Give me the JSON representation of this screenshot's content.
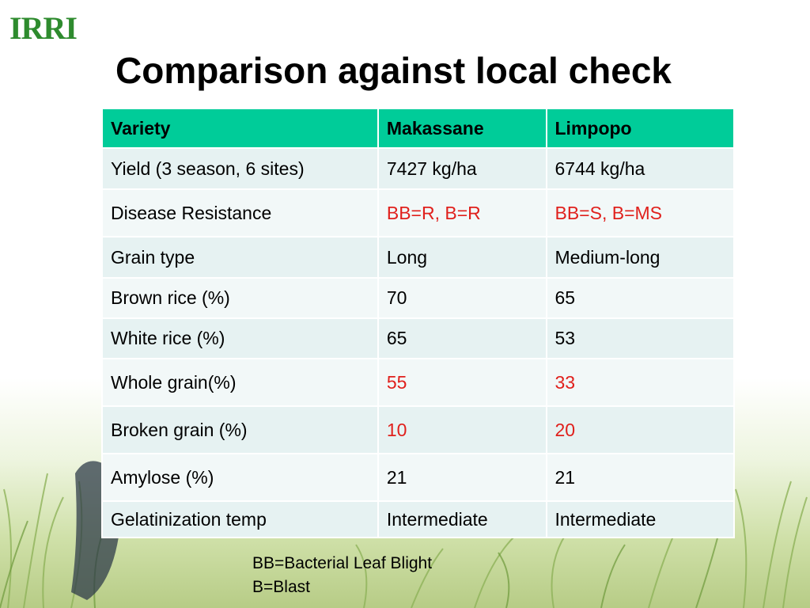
{
  "logo": "IRRI",
  "title": "Comparison against local check",
  "table": {
    "headers": [
      "Variety",
      "Makassane",
      "Limpopo"
    ],
    "rows": [
      [
        "Yield (3 season, 6 sites)",
        "7427 kg/ha",
        "6744 kg/ha"
      ],
      [
        "Disease Resistance",
        "BB=R, B=R",
        "BB=S, B=MS"
      ],
      [
        "Grain type",
        "Long",
        "Medium-long"
      ],
      [
        "Brown rice (%)",
        "70",
        "65"
      ],
      [
        "White rice (%)",
        "65",
        "53"
      ],
      [
        "Whole grain(%)",
        "55",
        "33"
      ],
      [
        "Broken grain (%)",
        "10",
        "20"
      ],
      [
        "Amylose (%)",
        "21",
        "21"
      ],
      [
        "Gelatinization temp",
        "Intermediate",
        "Intermediate"
      ]
    ]
  },
  "footnotes": [
    "BB=Bacterial Leaf Blight",
    "B=Blast"
  ],
  "colors": {
    "header_fill": "#00cc99",
    "row_fill_a": "#e6f2f2",
    "row_fill_b": "#f2f8f8",
    "highlight_text": "#e0201c",
    "logo": "#2e8b2e"
  }
}
